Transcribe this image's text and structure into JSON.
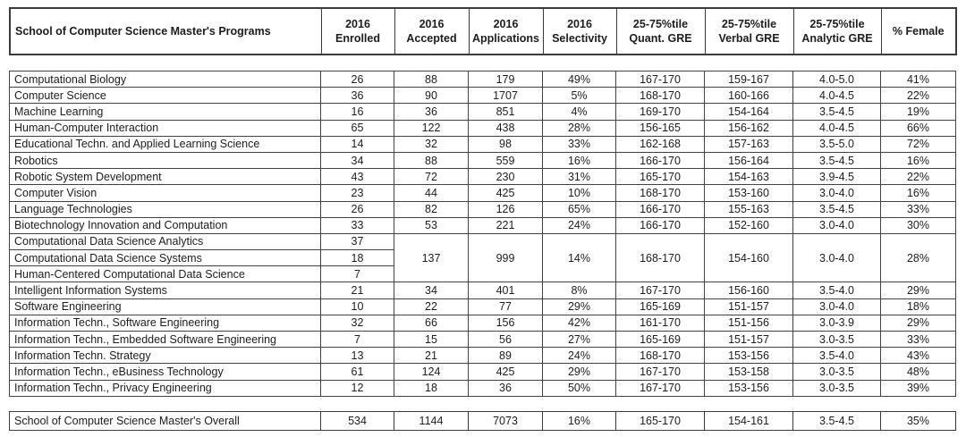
{
  "table": {
    "columns": [
      {
        "lines": [
          "School of Computer Science Master's Programs"
        ]
      },
      {
        "lines": [
          "2016",
          "Enrolled"
        ]
      },
      {
        "lines": [
          "2016",
          "Accepted"
        ]
      },
      {
        "lines": [
          "2016",
          "Applications"
        ]
      },
      {
        "lines": [
          "2016",
          "Selectivity"
        ]
      },
      {
        "lines": [
          "25-75%tile",
          "Quant. GRE"
        ]
      },
      {
        "lines": [
          "25-75%tile",
          "Verbal GRE"
        ]
      },
      {
        "lines": [
          "25-75%tile",
          "Analytic GRE"
        ]
      },
      {
        "lines": [
          "% Female"
        ]
      }
    ],
    "rows": [
      {
        "name": "Computational Biology",
        "cells": [
          "26",
          "88",
          "179",
          "49%",
          "167-170",
          "159-167",
          "4.0-5.0",
          "41%"
        ]
      },
      {
        "name": "Computer Science",
        "cells": [
          "36",
          "90",
          "1707",
          "5%",
          "168-170",
          "160-166",
          "4.0-4.5",
          "22%"
        ]
      },
      {
        "name": "Machine Learning",
        "cells": [
          "16",
          "36",
          "851",
          "4%",
          "169-170",
          "154-164",
          "3.5-4.5",
          "19%"
        ]
      },
      {
        "name": "Human-Computer Interaction",
        "cells": [
          "65",
          "122",
          "438",
          "28%",
          "156-165",
          "156-162",
          "4.0-4.5",
          "66%"
        ]
      },
      {
        "name": "Educational Techn. and Applied Learning Science",
        "cells": [
          "14",
          "32",
          "98",
          "33%",
          "162-168",
          "157-163",
          "3.5-5.0",
          "72%"
        ]
      },
      {
        "name": "Robotics",
        "cells": [
          "34",
          "88",
          "559",
          "16%",
          "166-170",
          "156-164",
          "3.5-4.5",
          "16%"
        ]
      },
      {
        "name": "Robotic System Development",
        "cells": [
          "43",
          "72",
          "230",
          "31%",
          "165-170",
          "154-163",
          "3.9-4.5",
          "22%"
        ]
      },
      {
        "name": "Computer Vision",
        "cells": [
          "23",
          "44",
          "425",
          "10%",
          "168-170",
          "153-160",
          "3.0-4.0",
          "16%"
        ]
      },
      {
        "name": "Language Technologies",
        "cells": [
          "26",
          "82",
          "126",
          "65%",
          "166-170",
          "155-163",
          "3.5-4.5",
          "33%"
        ]
      },
      {
        "name": "Biotechnology Innovation and Computation",
        "cells": [
          "33",
          "53",
          "221",
          "24%",
          "166-170",
          "152-160",
          "3.0-4.0",
          "30%"
        ]
      },
      {
        "name": "Computational Data Science Analytics",
        "cells": [
          "37"
        ],
        "merged_rowspan": 3,
        "merged_values": [
          "137",
          "999",
          "14%",
          "168-170",
          "154-160",
          "3.0-4.0",
          "28%"
        ]
      },
      {
        "name": "Computational Data Science Systems",
        "cells": [
          "18"
        ]
      },
      {
        "name": "Human-Centered Computational Data Science",
        "cells": [
          "7"
        ]
      },
      {
        "name": "Intelligent Information Systems",
        "cells": [
          "21",
          "34",
          "401",
          "8%",
          "167-170",
          "156-160",
          "3.5-4.0",
          "29%"
        ]
      },
      {
        "name": "Software Engineering",
        "cells": [
          "10",
          "22",
          "77",
          "29%",
          "165-169",
          "151-157",
          "3.0-4.0",
          "18%"
        ]
      },
      {
        "name": "Information Techn., Software Engineering",
        "cells": [
          "32",
          "66",
          "156",
          "42%",
          "161-170",
          "151-156",
          "3.0-3.9",
          "29%"
        ]
      },
      {
        "name": "Information Techn., Embedded Software Engineering",
        "cells": [
          "7",
          "15",
          "56",
          "27%",
          "165-169",
          "151-157",
          "3.0-3.5",
          "33%"
        ]
      },
      {
        "name": "Information Techn. Strategy",
        "cells": [
          "13",
          "21",
          "89",
          "24%",
          "168-170",
          "153-156",
          "3.5-4.0",
          "43%"
        ]
      },
      {
        "name": "Information Techn., eBusiness Technology",
        "cells": [
          "61",
          "124",
          "425",
          "29%",
          "167-170",
          "153-158",
          "3.0-3.5",
          "48%"
        ]
      },
      {
        "name": "Information Techn., Privacy Engineering",
        "cells": [
          "12",
          "18",
          "36",
          "50%",
          "167-170",
          "153-156",
          "3.0-3.5",
          "39%"
        ]
      }
    ],
    "overall": {
      "name": "School of Computer Science Master's Overall",
      "cells": [
        "534",
        "1144",
        "7073",
        "16%",
        "165-170",
        "154-161",
        "3.5-4.5",
        "35%"
      ]
    },
    "colors": {
      "border": "#3c3c3c",
      "text": "#1d1d1d",
      "background": "#ffffff"
    }
  }
}
